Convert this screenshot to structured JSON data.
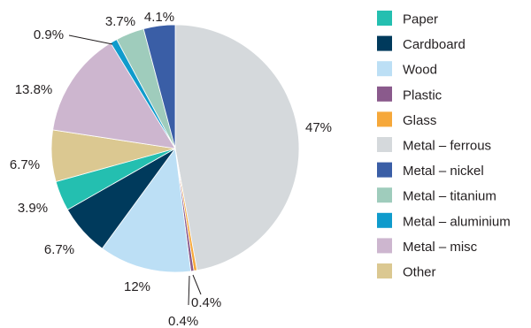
{
  "chart_data": {
    "type": "pie",
    "title": "",
    "start_angle_deg": 0,
    "direction": "clockwise",
    "legend_position": "right",
    "slices": [
      {
        "name": "Metal – ferrous",
        "value": 47,
        "label": "47%",
        "color": "#d5d9dc"
      },
      {
        "name": "Glass",
        "value": 0.4,
        "label": "0.4%",
        "color": "#f6a83a"
      },
      {
        "name": "Plastic",
        "value": 0.4,
        "label": "0.4%",
        "color": "#8a5a8c"
      },
      {
        "name": "Wood",
        "value": 12,
        "label": "12%",
        "color": "#bcdff5"
      },
      {
        "name": "Cardboard",
        "value": 6.7,
        "label": "6.7%",
        "color": "#003a5c"
      },
      {
        "name": "Paper",
        "value": 3.9,
        "label": "3.9%",
        "color": "#24bfb0"
      },
      {
        "name": "Other",
        "value": 6.7,
        "label": "6.7%",
        "color": "#dbc891"
      },
      {
        "name": "Metal – misc",
        "value": 13.8,
        "label": "13.8%",
        "color": "#cdb6cf"
      },
      {
        "name": "Metal – aluminium",
        "value": 0.9,
        "label": "0.9%",
        "color": "#0f9bcc"
      },
      {
        "name": "Metal – titanium",
        "value": 3.7,
        "label": "3.7%",
        "color": "#9fccbc"
      },
      {
        "name": "Metal – nickel",
        "value": 4.1,
        "label": "4.1%",
        "color": "#3a5ea6"
      }
    ],
    "legend": [
      {
        "name": "Paper",
        "color": "#24bfb0"
      },
      {
        "name": "Cardboard",
        "color": "#003a5c"
      },
      {
        "name": "Wood",
        "color": "#bcdff5"
      },
      {
        "name": "Plastic",
        "color": "#8a5a8c"
      },
      {
        "name": "Glass",
        "color": "#f6a83a"
      },
      {
        "name": "Metal – ferrous",
        "color": "#d5d9dc"
      },
      {
        "name": "Metal – nickel",
        "color": "#3a5ea6"
      },
      {
        "name": "Metal – titanium",
        "color": "#9fccbc"
      },
      {
        "name": "Metal – aluminium",
        "color": "#0f9bcc"
      },
      {
        "name": "Metal – misc",
        "color": "#cdb6cf"
      },
      {
        "name": "Other",
        "color": "#dbc891"
      }
    ]
  }
}
